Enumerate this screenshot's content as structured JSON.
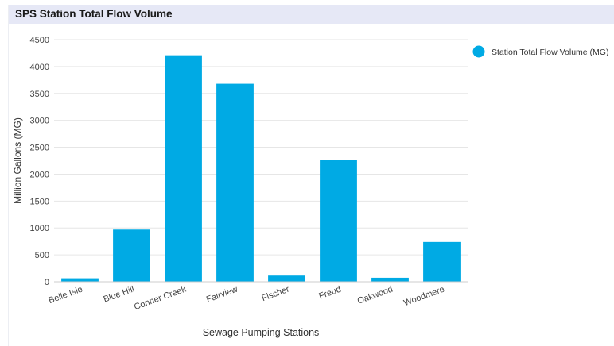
{
  "header": {
    "title": "SPS Station Total Flow Volume"
  },
  "colors": {
    "bar": "#00aae4",
    "title_bar": "#e6e8f6",
    "grid": "#e6e6e6",
    "axis_text": "#444444"
  },
  "chart_data": {
    "type": "bar",
    "title": "SPS Station Total Flow Volume",
    "xlabel": "Sewage Pumping Stations",
    "ylabel": "Million Gallons (MG)",
    "categories": [
      "Belle Isle",
      "Blue Hill",
      "Conner Creek",
      "Fairview",
      "Fischer",
      "Freud",
      "Oakwood",
      "Woodmere"
    ],
    "series": [
      {
        "name": "Station Total Flow Volume (MG)",
        "values": [
          65,
          970,
          4210,
          3680,
          115,
          2260,
          75,
          740
        ]
      }
    ],
    "ylim": [
      0,
      4500
    ],
    "yticks": [
      0,
      500,
      1000,
      1500,
      2000,
      2500,
      3000,
      3500,
      4000,
      4500
    ],
    "grid": true,
    "legend": "top-right"
  }
}
